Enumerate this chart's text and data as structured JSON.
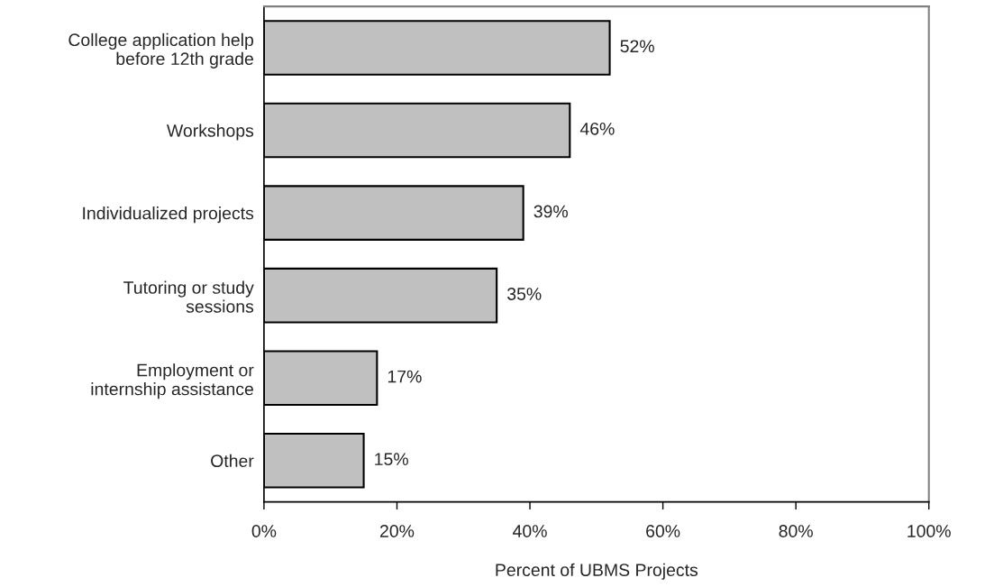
{
  "chart_data": {
    "type": "bar",
    "orientation": "horizontal",
    "categories": [
      "College application help\nbefore 12th grade",
      "Workshops",
      "Individualized projects",
      "Tutoring or study\nsessions",
      "Employment or\ninternship assistance",
      "Other"
    ],
    "values": [
      52,
      46,
      39,
      35,
      17,
      15
    ],
    "value_labels": [
      "52%",
      "46%",
      "39%",
      "35%",
      "17%",
      "15%"
    ],
    "color": "#c0c0c0",
    "xlabel": "Percent of UBMS Projects",
    "xlim": [
      0,
      100
    ],
    "xticks": [
      {
        "value": 0,
        "label": "0%"
      },
      {
        "value": 20,
        "label": "20%"
      },
      {
        "value": 40,
        "label": "40%"
      },
      {
        "value": 60,
        "label": "60%"
      },
      {
        "value": 80,
        "label": "80%"
      },
      {
        "value": 100,
        "label": "100%"
      }
    ],
    "grid": false,
    "legend": false
  }
}
